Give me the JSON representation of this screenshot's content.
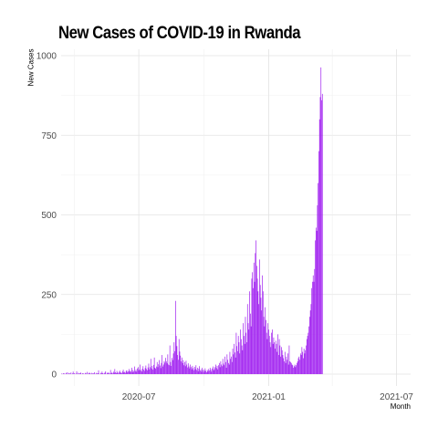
{
  "chart_data": {
    "type": "bar",
    "title": "New Cases of COVID-19 in Rwanda",
    "xlabel": "Month",
    "ylabel": "New Cases",
    "bar_color": "#A020F0",
    "grid": true,
    "ylim": [
      0,
      1000
    ],
    "xlim": [
      "2020-03-13",
      "2021-07-21"
    ],
    "y_ticks": [
      0,
      250,
      500,
      750,
      1000
    ],
    "x_ticks": [
      {
        "date": "2020-07-01",
        "label": "2020-07"
      },
      {
        "date": "2021-01-01",
        "label": "2021-01"
      },
      {
        "date": "2021-07-01",
        "label": "2021-07"
      }
    ],
    "series": [
      {
        "start_date": "2020-03-14",
        "values": [
          2,
          0,
          3,
          1,
          2,
          0,
          4,
          1,
          6,
          0,
          3,
          2,
          1,
          5,
          0,
          2,
          8,
          1,
          3,
          0,
          2,
          9,
          0,
          4,
          1,
          3,
          2,
          5,
          0,
          2,
          3,
          1,
          0,
          4,
          2,
          1,
          7,
          0,
          3,
          5,
          2,
          1,
          4,
          0,
          3,
          2,
          6,
          1,
          0,
          4,
          2,
          3,
          12,
          1,
          0,
          4,
          2,
          8,
          3,
          1,
          2,
          5,
          9,
          0,
          3,
          6,
          2,
          4,
          1,
          13,
          3,
          5,
          2,
          8,
          4,
          16,
          6,
          3,
          10,
          5,
          2,
          7,
          11,
          4,
          6,
          3,
          9,
          14,
          5,
          7,
          4,
          10,
          12,
          6,
          9,
          16,
          8,
          11,
          7,
          20,
          13,
          6,
          10,
          24,
          9,
          14,
          8,
          18,
          22,
          11,
          15,
          30,
          12,
          8,
          17,
          25,
          14,
          10,
          19,
          27,
          16,
          12,
          21,
          33,
          15,
          22,
          48,
          18,
          26,
          14,
          29,
          52,
          20,
          17,
          24,
          38,
          22,
          31,
          44,
          27,
          19,
          35,
          60,
          24,
          30,
          41,
          36,
          51,
          40,
          34,
          62,
          30,
          28,
          90,
          38,
          26,
          51,
          44,
          65,
          100,
          72,
          230,
          120,
          88,
          60,
          45,
          110,
          71,
          58,
          40,
          52,
          35,
          44,
          28,
          38,
          25,
          42,
          30,
          21,
          34,
          24,
          18,
          30,
          22,
          15,
          26,
          19,
          12,
          23,
          16,
          28,
          13,
          20,
          9,
          17,
          25,
          11,
          15,
          8,
          20,
          14,
          7,
          12,
          18,
          10,
          6,
          13,
          9,
          16,
          11,
          20,
          14,
          8,
          18,
          24,
          12,
          16,
          22,
          30,
          19,
          26,
          15,
          28,
          35,
          22,
          40,
          30,
          25,
          48,
          33,
          28,
          55,
          38,
          20,
          62,
          45,
          35,
          30,
          70,
          48,
          55,
          38,
          80,
          62,
          95,
          68,
          52,
          130,
          88,
          72,
          120,
          100,
          65,
          140,
          110,
          90,
          75,
          160,
          120,
          95,
          180,
          130,
          100,
          220,
          160,
          140,
          260,
          190,
          150,
          300,
          320,
          270,
          350,
          290,
          380,
          420,
          340,
          300,
          260,
          220,
          360,
          280,
          240,
          200,
          310,
          260,
          180,
          150,
          210,
          170,
          130,
          110,
          160,
          140,
          120,
          100,
          85,
          130,
          140,
          95,
          115,
          100,
          80,
          105,
          95,
          70,
          125,
          60,
          110,
          90,
          55,
          85,
          75,
          60,
          50,
          40,
          70,
          35,
          55,
          45,
          65,
          30,
          90,
          40,
          38,
          35,
          30,
          28,
          20,
          25,
          30,
          22,
          28,
          35,
          40,
          50,
          55,
          45,
          65,
          60,
          85,
          70,
          50,
          80,
          65,
          75,
          90,
          110,
          120,
          130,
          150,
          180,
          200,
          220,
          270,
          290,
          310,
          290,
          330,
          420,
          460,
          450,
          530,
          600,
          700,
          800,
          870,
          963,
          860,
          880
        ]
      }
    ]
  }
}
